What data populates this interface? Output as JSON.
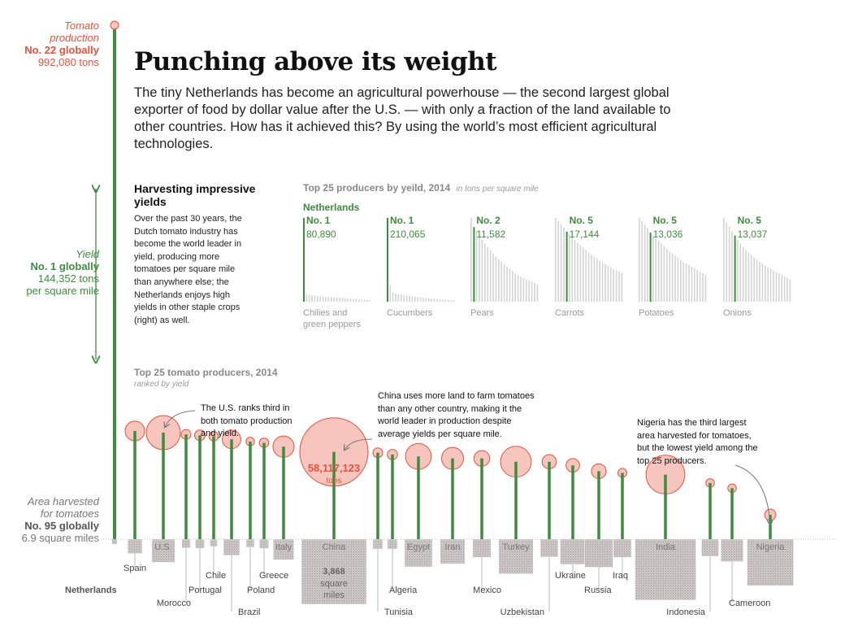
{
  "headline": "Punching above its weight",
  "intro": "The tiny Netherlands has become an agricultural powerhouse — the second largest global exporter of food by dollar value after the U.S. — with only a fraction of the land available to other countries. How has it achieved this? By using the world’s most efficient agricultural technologies.",
  "side": {
    "production": {
      "label_line1": "Tomato",
      "label_line2": "production",
      "rank": "No. 22 globally",
      "value": "992,080 tons"
    },
    "yield": {
      "label": "Yield",
      "rank": "No. 1 globally",
      "value_line1": "144,352 tons",
      "value_line2": "per square mile"
    },
    "area": {
      "label_line1": "Area harvested",
      "label_line2": "for tomatoes",
      "rank": "No. 95 globally",
      "value": "6.9 square miles"
    },
    "country": "Netherlands"
  },
  "section": {
    "title": "Harvesting impressive yields",
    "body": "Over the past 30 years, the Dutch tomato industry has become the world leader in yield, producing more tomatoes per square mile than anywhere else; the Netherlands enjoys high yields in other staple crops (right) as well."
  },
  "small_multiples": {
    "title": "Top 25 producers by yeild, 2014",
    "unit": "in tons per square mile",
    "highlight_label": "Netherlands",
    "colors": {
      "highlight": "#3f8b3f",
      "other": "#d4d4d4"
    }
  },
  "main_chart": {
    "title": "Top 25 tomato producers, 2014",
    "subtitle": "ranked by yield",
    "colors": {
      "stem": "#3f8b3f",
      "bubble_fill": "#f6c6be",
      "bubble_stroke": "#e0533e",
      "area_fill": "#cbc4c4"
    }
  },
  "annotations": {
    "us": "The U.S. ranks third in both tomato production and yield.",
    "china": "China uses more land to farm tomatoes than any other country, making it the world leader in production despite average yields per square mile.",
    "nigeria": "Nigeria has the third largest area harvested for tomatoes, but the lowest yield among the top 25 producers.",
    "china_production_value": "58,117,123",
    "china_production_unit": "tons",
    "china_area_value": "3,868",
    "china_area_unit_line1": "square",
    "china_area_unit_line2": "miles"
  },
  "chart_data": [
    {
      "type": "bar",
      "crop": "Chilies and green peppers",
      "rank_label": "No. 1",
      "value_label": "80,890",
      "highlight_rank": 1,
      "values": [
        80890,
        6900,
        6500,
        6200,
        5900,
        5600,
        5300,
        5000,
        4800,
        4600,
        4400,
        4200,
        4000,
        3800,
        3600,
        3400,
        3200,
        3000,
        2800,
        2600,
        2400,
        2200,
        2000,
        1800,
        1600
      ]
    },
    {
      "type": "bar",
      "crop": "Cucumbers",
      "rank_label": "No. 1",
      "value_label": "210,065",
      "highlight_rank": 1,
      "values": [
        210065,
        42000,
        24000,
        21000,
        19500,
        18000,
        16800,
        15600,
        14400,
        13500,
        12600,
        11700,
        10800,
        10000,
        9200,
        8500,
        7800,
        7100,
        6500,
        5900,
        5300,
        4800,
        4300,
        3800,
        3300
      ]
    },
    {
      "type": "bar",
      "crop": "Pears",
      "rank_label": "No. 2",
      "value_label": "11,582",
      "highlight_rank": 2,
      "values": [
        13000,
        11582,
        11000,
        10200,
        9600,
        9000,
        8500,
        8000,
        7500,
        7000,
        6600,
        6200,
        5800,
        5400,
        5100,
        4800,
        4500,
        4200,
        3900,
        3700,
        3500,
        3300,
        3100,
        2900,
        2700
      ]
    },
    {
      "type": "bar",
      "crop": "Carrots",
      "rank_label": "No. 5",
      "value_label": "17,144",
      "highlight_rank": 5,
      "values": [
        20500,
        19800,
        19000,
        18200,
        17144,
        16500,
        15800,
        15100,
        14400,
        13800,
        13200,
        12600,
        12000,
        11500,
        11000,
        10500,
        10000,
        9600,
        9200,
        8800,
        8400,
        8000,
        7700,
        7400,
        7100
      ]
    },
    {
      "type": "bar",
      "crop": "Potatoes",
      "rank_label": "No. 5",
      "value_label": "13,036",
      "highlight_rank": 5,
      "values": [
        15800,
        15200,
        14600,
        13900,
        13036,
        12500,
        12000,
        11500,
        11000,
        10500,
        10000,
        9500,
        9100,
        8700,
        8300,
        7900,
        7500,
        7200,
        6900,
        6600,
        6300,
        6000,
        5700,
        5400,
        5100
      ]
    },
    {
      "type": "bar",
      "crop": "Onions",
      "rank_label": "No. 5",
      "value_label": "13,037",
      "highlight_rank": 5,
      "values": [
        16500,
        15600,
        14800,
        13900,
        13037,
        12200,
        11500,
        10800,
        10200,
        9700,
        9200,
        8700,
        8300,
        7900,
        7500,
        7100,
        6800,
        6500,
        6200,
        5900,
        5600,
        5300,
        5000,
        4700,
        4400
      ]
    },
    {
      "type": "scatter",
      "title": "Top 25 tomato producers, 2014",
      "subtitle": "ranked by yield",
      "countries": [
        "Netherlands",
        "Spain",
        "U.S.",
        "Morocco",
        "Portugal",
        "Chile",
        "Brazil",
        "Poland",
        "Greece",
        "Italy",
        "China",
        "Tunisia",
        "Algeria",
        "Egypt",
        "Iran",
        "Mexico",
        "Turkey",
        "Uzbekistan",
        "Ukraine",
        "Russia",
        "Iraq",
        "India",
        "Indonesia",
        "Cameroon",
        "Nigeria"
      ],
      "yield_tons_per_sq_mi": [
        144352,
        36000,
        34000,
        32000,
        31000,
        30000,
        27000,
        25000,
        24000,
        21000,
        17500,
        17000,
        16000,
        15000,
        14000,
        14000,
        12500,
        12500,
        11000,
        9000,
        8500,
        8000,
        6000,
        5000,
        2000
      ],
      "production_tons": [
        992080,
        4800000,
        14500000,
        1200000,
        1400000,
        1100000,
        4300000,
        900000,
        1100000,
        5600000,
        58117123,
        1200000,
        1300000,
        8300000,
        6000000,
        3100000,
        11800000,
        2500000,
        2300000,
        2700000,
        1000000,
        18700000,
        900000,
        900000,
        1600000
      ],
      "area_sq_mi": [
        6.9,
        190,
        490,
        70,
        75,
        50,
        240,
        60,
        80,
        390,
        3868,
        90,
        90,
        700,
        560,
        300,
        1100,
        290,
        580,
        720,
        300,
        3400,
        270,
        460,
        1980
      ]
    }
  ]
}
